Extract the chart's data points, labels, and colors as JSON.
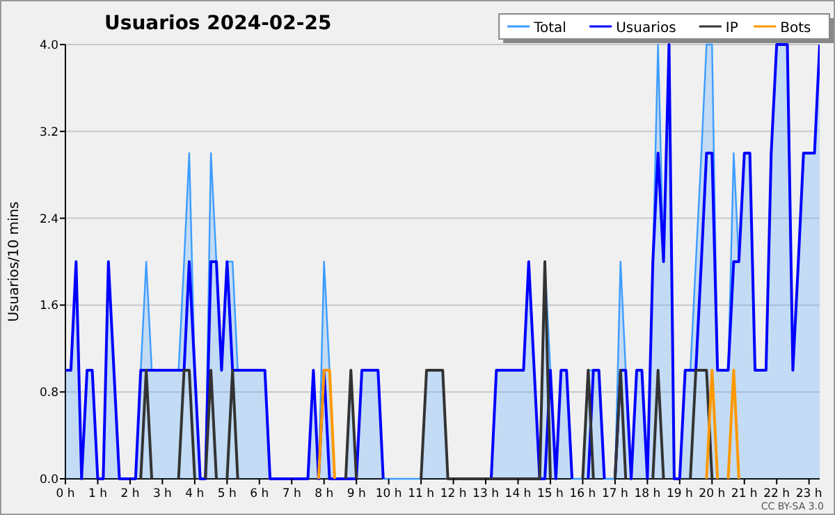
{
  "chart_data": {
    "type": "line",
    "title": "Usuarios  2024-02-25",
    "ylabel": "Usuarios/10 mins",
    "x": [
      0,
      0.17,
      0.33,
      0.5,
      0.67,
      0.83,
      1,
      1.17,
      1.33,
      1.5,
      1.67,
      1.83,
      2,
      2.17,
      2.33,
      2.5,
      2.67,
      2.83,
      3,
      3.17,
      3.33,
      3.5,
      3.67,
      3.83,
      4,
      4.17,
      4.33,
      4.5,
      4.67,
      4.83,
      5,
      5.17,
      5.33,
      5.5,
      5.67,
      5.83,
      6,
      6.17,
      6.33,
      6.5,
      6.67,
      6.83,
      7,
      7.17,
      7.33,
      7.5,
      7.67,
      7.83,
      8,
      8.17,
      8.33,
      8.5,
      8.67,
      8.83,
      9,
      9.17,
      9.33,
      9.5,
      9.67,
      9.83,
      10,
      10.17,
      10.33,
      10.5,
      10.67,
      10.83,
      11,
      11.17,
      11.33,
      11.5,
      11.67,
      11.83,
      12,
      12.17,
      12.33,
      12.5,
      12.67,
      12.83,
      13,
      13.17,
      13.33,
      13.5,
      13.67,
      13.83,
      14,
      14.17,
      14.33,
      14.5,
      14.67,
      14.83,
      15,
      15.17,
      15.33,
      15.5,
      15.67,
      15.83,
      16,
      16.17,
      16.33,
      16.5,
      16.67,
      16.83,
      17,
      17.17,
      17.33,
      17.5,
      17.67,
      17.83,
      18,
      18.17,
      18.33,
      18.5,
      18.67,
      18.83,
      19,
      19.17,
      19.33,
      19.5,
      19.67,
      19.83,
      20,
      20.17,
      20.33,
      20.5,
      20.67,
      20.83,
      21,
      21.17,
      21.33,
      21.5,
      21.67,
      21.83,
      22,
      22.17,
      22.33,
      22.5,
      22.67,
      22.83,
      23,
      23.17,
      23.33
    ],
    "series": [
      {
        "name": "Total",
        "type": "area",
        "color": "#3b9cff",
        "values": [
          1,
          1,
          2,
          0,
          1,
          1,
          0,
          0,
          2,
          1,
          0,
          0,
          0,
          0,
          1,
          2,
          1,
          1,
          1,
          1,
          1,
          1,
          2,
          3,
          1,
          0,
          0,
          3,
          2,
          1,
          2,
          2,
          1,
          1,
          1,
          1,
          1,
          1,
          0,
          0,
          0,
          0,
          0,
          0,
          0,
          0,
          1,
          0,
          2,
          1,
          0,
          0,
          0,
          1,
          0,
          1,
          1,
          1,
          1,
          0,
          0,
          0,
          0,
          0,
          0,
          0,
          0,
          1,
          1,
          1,
          1,
          0,
          0,
          0,
          0,
          0,
          0,
          0,
          0,
          0,
          1,
          1,
          1,
          1,
          1,
          1,
          2,
          1,
          0,
          2,
          1,
          0,
          1,
          1,
          0,
          0,
          0,
          1,
          1,
          1,
          0,
          0,
          0,
          2,
          1,
          0,
          1,
          1,
          0,
          2,
          4,
          2,
          4,
          0,
          0,
          1,
          1,
          2,
          3,
          4,
          4,
          1,
          1,
          1,
          3,
          2,
          3,
          3,
          1,
          1,
          1,
          3,
          4,
          4,
          4,
          1,
          2,
          3,
          3,
          3,
          4
        ]
      },
      {
        "name": "Usuarios",
        "color": "#0000ff",
        "values": [
          1,
          1,
          2,
          0,
          1,
          1,
          0,
          0,
          2,
          1,
          0,
          0,
          0,
          0,
          1,
          1,
          1,
          1,
          1,
          1,
          1,
          1,
          1,
          2,
          1,
          0,
          0,
          2,
          2,
          1,
          2,
          1,
          1,
          1,
          1,
          1,
          1,
          1,
          0,
          0,
          0,
          0,
          0,
          0,
          0,
          0,
          1,
          0,
          1,
          0,
          0,
          0,
          0,
          0,
          0,
          1,
          1,
          1,
          1,
          0,
          null,
          null,
          null,
          null,
          null,
          null,
          null,
          null,
          null,
          null,
          null,
          null,
          null,
          null,
          null,
          null,
          null,
          null,
          null,
          0,
          1,
          1,
          1,
          1,
          1,
          1,
          2,
          1,
          0,
          0,
          1,
          0,
          1,
          1,
          0,
          null,
          null,
          0,
          1,
          1,
          0,
          null,
          0,
          1,
          1,
          0,
          1,
          1,
          0,
          2,
          3,
          2,
          4,
          0,
          0,
          1,
          1,
          1,
          2,
          3,
          3,
          1,
          1,
          1,
          2,
          2,
          3,
          3,
          1,
          1,
          1,
          3,
          4,
          4,
          4,
          1,
          2,
          3,
          3,
          3,
          4
        ]
      },
      {
        "name": "IP",
        "color": "#333333",
        "values": [
          null,
          null,
          null,
          null,
          null,
          null,
          null,
          null,
          null,
          null,
          null,
          null,
          null,
          null,
          0,
          1,
          0,
          null,
          null,
          null,
          null,
          0,
          1,
          1,
          0,
          null,
          0,
          1,
          0,
          null,
          0,
          1,
          0,
          null,
          null,
          null,
          null,
          null,
          null,
          null,
          null,
          null,
          null,
          null,
          null,
          null,
          null,
          null,
          null,
          null,
          null,
          null,
          0,
          1,
          0,
          null,
          null,
          null,
          null,
          null,
          null,
          null,
          null,
          null,
          null,
          null,
          0,
          1,
          1,
          1,
          1,
          0,
          0,
          0,
          0,
          0,
          0,
          0,
          0,
          0,
          0,
          0,
          0,
          0,
          0,
          0,
          0,
          0,
          0,
          2,
          0,
          null,
          null,
          null,
          null,
          null,
          0,
          1,
          0,
          null,
          null,
          null,
          0,
          1,
          0,
          null,
          null,
          null,
          null,
          0,
          1,
          0,
          null,
          null,
          null,
          null,
          0,
          1,
          1,
          1,
          0,
          null,
          null,
          null,
          null,
          null,
          null,
          null,
          null,
          null,
          null,
          null,
          null,
          null,
          null,
          null,
          null,
          null,
          null,
          null,
          null
        ]
      },
      {
        "name": "Bots",
        "color": "#ff9900",
        "values": [
          null,
          null,
          null,
          null,
          null,
          null,
          null,
          null,
          null,
          null,
          null,
          null,
          null,
          null,
          null,
          null,
          null,
          null,
          null,
          null,
          null,
          null,
          null,
          null,
          null,
          null,
          null,
          null,
          null,
          null,
          null,
          null,
          null,
          null,
          null,
          null,
          null,
          null,
          null,
          null,
          null,
          null,
          null,
          null,
          null,
          null,
          null,
          0,
          1,
          1,
          0,
          null,
          null,
          null,
          null,
          null,
          null,
          null,
          null,
          null,
          null,
          null,
          null,
          null,
          null,
          null,
          null,
          null,
          null,
          null,
          null,
          null,
          null,
          null,
          null,
          null,
          null,
          null,
          null,
          null,
          null,
          null,
          null,
          null,
          null,
          null,
          null,
          null,
          null,
          null,
          null,
          null,
          null,
          null,
          null,
          null,
          null,
          null,
          null,
          null,
          null,
          null,
          null,
          null,
          null,
          null,
          null,
          null,
          null,
          null,
          null,
          null,
          null,
          null,
          null,
          null,
          null,
          null,
          null,
          0,
          1,
          0,
          null,
          0,
          1,
          0,
          null,
          null,
          null,
          null,
          null,
          null,
          null,
          null,
          null,
          null,
          null,
          null,
          null,
          null,
          null
        ]
      }
    ],
    "xlim": [
      0,
      23.33
    ],
    "xticks": [
      {
        "value": 0,
        "label": "0 h"
      },
      {
        "value": 1,
        "label": "1 h"
      },
      {
        "value": 2,
        "label": "2 h"
      },
      {
        "value": 3,
        "label": "3 h"
      },
      {
        "value": 4,
        "label": "4 h"
      },
      {
        "value": 5,
        "label": "5 h"
      },
      {
        "value": 6,
        "label": "6 h"
      },
      {
        "value": 7,
        "label": "7 h"
      },
      {
        "value": 8,
        "label": "8 h"
      },
      {
        "value": 9,
        "label": "9 h"
      },
      {
        "value": 10,
        "label": "10 h"
      },
      {
        "value": 11,
        "label": "11 h"
      },
      {
        "value": 12,
        "label": "12 h"
      },
      {
        "value": 13,
        "label": "13 h"
      },
      {
        "value": 14,
        "label": "14 h"
      },
      {
        "value": 15,
        "label": "15 h"
      },
      {
        "value": 16,
        "label": "16 h"
      },
      {
        "value": 17,
        "label": "17 h"
      },
      {
        "value": 18,
        "label": "18 h"
      },
      {
        "value": 19,
        "label": "19 h"
      },
      {
        "value": 20,
        "label": "20 h"
      },
      {
        "value": 21,
        "label": "21 h"
      },
      {
        "value": 22,
        "label": "22 h"
      },
      {
        "value": 23,
        "label": "23 h"
      }
    ],
    "ylim": [
      0,
      4
    ],
    "yticks": [
      {
        "value": 0,
        "label": "0.0"
      },
      0.8,
      1.6,
      2.4,
      3.2,
      {
        "value": 4,
        "label": "4.0"
      }
    ],
    "grid": "y",
    "legend": "top right",
    "annotations": [
      "CC BY-SA 3.0"
    ]
  }
}
